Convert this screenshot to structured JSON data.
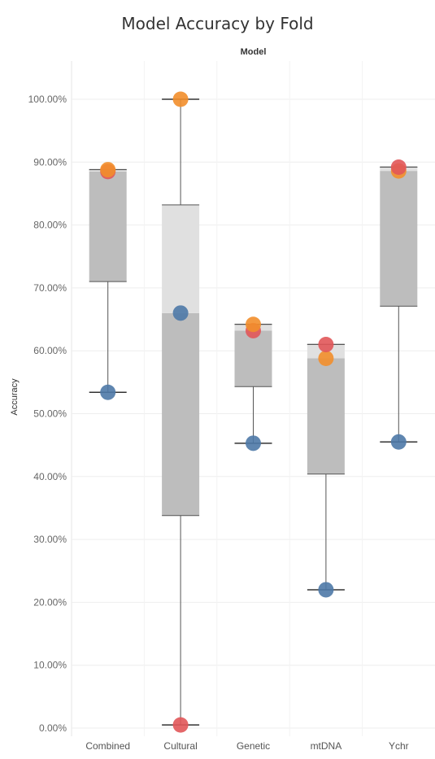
{
  "chart_data": {
    "type": "box",
    "title": "Model Accuracy by Fold",
    "column_header": "Model",
    "ylabel": "Accuracy",
    "ylim": [
      0,
      1.05
    ],
    "y_ticks": [
      0,
      0.1,
      0.2,
      0.3,
      0.4,
      0.5,
      0.6,
      0.7,
      0.8,
      0.9,
      1.0
    ],
    "y_tick_labels": [
      "0.00%",
      "10.00%",
      "20.00%",
      "30.00%",
      "40.00%",
      "50.00%",
      "60.00%",
      "70.00%",
      "80.00%",
      "90.00%",
      "100.00%"
    ],
    "categories": [
      "Combined",
      "Cultural",
      "Genetic",
      "mtDNA",
      "Ychr"
    ],
    "boxes": [
      {
        "min": 0.534,
        "q1": 0.71,
        "median": 0.885,
        "q3": 0.888,
        "max": 0.888
      },
      {
        "min": 0.005,
        "q1": 0.338,
        "median": 0.66,
        "q3": 0.832,
        "max": 1.0
      },
      {
        "min": 0.453,
        "q1": 0.543,
        "median": 0.632,
        "q3": 0.642,
        "max": 0.642
      },
      {
        "min": 0.22,
        "q1": 0.404,
        "median": 0.588,
        "q3": 0.61,
        "max": 0.61
      },
      {
        "min": 0.455,
        "q1": 0.671,
        "median": 0.886,
        "q3": 0.892,
        "max": 0.892
      }
    ],
    "points": [
      {
        "category": "Combined",
        "values": [
          0.534,
          0.885,
          0.888
        ],
        "colors": [
          "#4e79a7",
          "#e15759",
          "#f28e2b"
        ]
      },
      {
        "category": "Cultural",
        "values": [
          0.005,
          0.66,
          1.0
        ],
        "colors": [
          "#e15759",
          "#4e79a7",
          "#f28e2b"
        ]
      },
      {
        "category": "Genetic",
        "values": [
          0.453,
          0.632,
          0.642
        ],
        "colors": [
          "#4e79a7",
          "#e15759",
          "#f28e2b"
        ]
      },
      {
        "category": "mtDNA",
        "values": [
          0.22,
          0.588,
          0.61
        ],
        "colors": [
          "#4e79a7",
          "#f28e2b",
          "#e15759"
        ]
      },
      {
        "category": "Ychr",
        "values": [
          0.455,
          0.886,
          0.892
        ],
        "colors": [
          "#4e79a7",
          "#f28e2b",
          "#e15759"
        ]
      }
    ],
    "colors": {
      "box_lower": "#bdbdbd",
      "box_upper": "#e0e0e0",
      "whisker": "#555555"
    }
  }
}
